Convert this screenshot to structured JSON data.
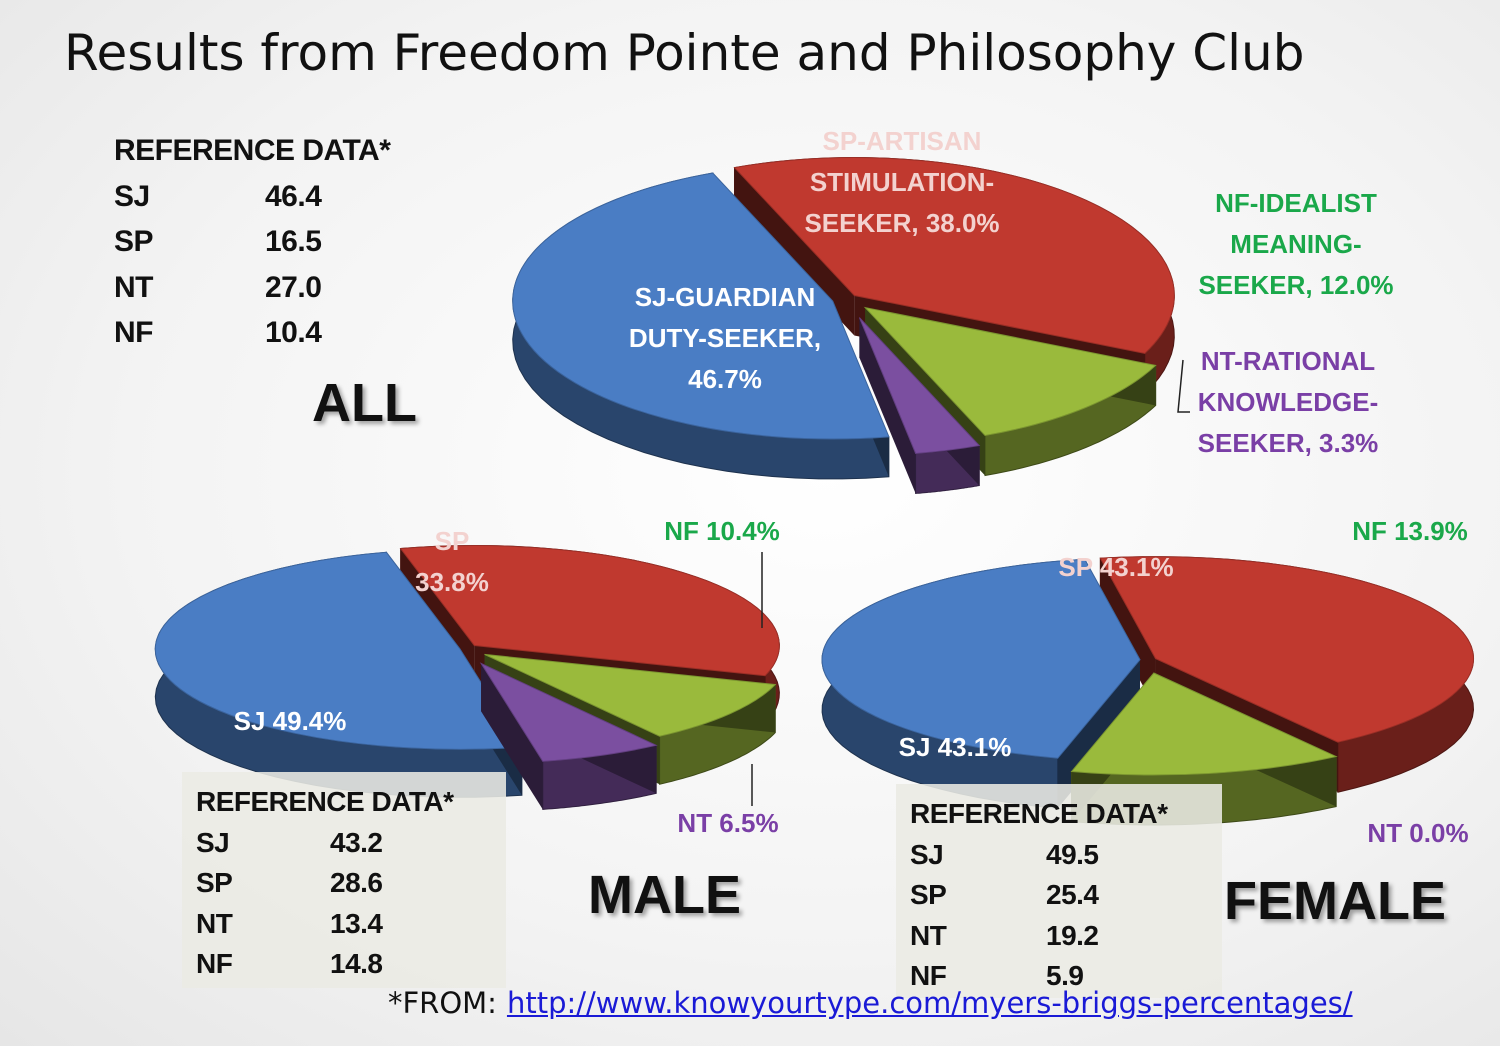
{
  "title": "Results from Freedom Pointe and Philosophy Club",
  "colors": {
    "SJ": "#4a7dc4",
    "SP": "#c0392f",
    "NF": "#9aba3c",
    "NT": "#7b4fa0",
    "NF_label": "#1aa84a",
    "NT_label": "#7a3fa6"
  },
  "reference_all": {
    "heading": "REFERENCE DATA*",
    "rows": [
      {
        "k": "SJ",
        "v": "46.4"
      },
      {
        "k": "SP",
        "v": "16.5"
      },
      {
        "k": "NT",
        "v": "27.0"
      },
      {
        "k": "NF",
        "v": "10.4"
      }
    ]
  },
  "reference_male": {
    "heading": "REFERENCE DATA*",
    "rows": [
      {
        "k": "SJ",
        "v": "43.2"
      },
      {
        "k": "SP",
        "v": "28.6"
      },
      {
        "k": "NT",
        "v": "13.4"
      },
      {
        "k": "NF",
        "v": "14.8"
      }
    ]
  },
  "reference_female": {
    "heading": "REFERENCE DATA*",
    "rows": [
      {
        "k": "SJ",
        "v": "49.5"
      },
      {
        "k": "SP",
        "v": "25.4"
      },
      {
        "k": "NT",
        "v": "19.2"
      },
      {
        "k": "NF",
        "v": "5.9"
      }
    ]
  },
  "group_labels": {
    "all": "ALL",
    "male": "MALE",
    "female": "FEMALE"
  },
  "source": {
    "prefix": "*FROM:",
    "link": "http://www.knowyourtype.com/myers-briggs-percentages/"
  },
  "chart_data": [
    {
      "type": "pie",
      "title": "ALL",
      "categories": [
        "SP",
        "NF",
        "NT",
        "SJ"
      ],
      "values": [
        38.0,
        12.0,
        3.3,
        46.7
      ],
      "labels": [
        [
          "SP-ARTISAN",
          "STIMULATION-",
          "SEEKER, 38.0%"
        ],
        [
          "NF-IDEALIST",
          "MEANING-",
          "SEEKER, 12.0%"
        ],
        [
          "NT-RATIONAL",
          "KNOWLEDGE-",
          "SEEKER, 3.3%"
        ],
        [
          "SJ-GUARDIAN",
          "DUTY-SEEKER,",
          "46.7%"
        ]
      ]
    },
    {
      "type": "pie",
      "title": "MALE",
      "categories": [
        "SP",
        "NF",
        "NT",
        "SJ"
      ],
      "values": [
        33.8,
        10.4,
        6.5,
        49.4
      ],
      "labels": [
        [
          "SP",
          "33.8%"
        ],
        [
          "NF 10.4%"
        ],
        [
          "NT  6.5%"
        ],
        [
          "SJ 49.4%"
        ]
      ]
    },
    {
      "type": "pie",
      "title": "FEMALE",
      "categories": [
        "SP",
        "NF",
        "NT",
        "SJ"
      ],
      "values": [
        43.1,
        13.9,
        0.0,
        43.1
      ],
      "labels": [
        [
          "SP 43.1%"
        ],
        [
          "NF 13.9%"
        ],
        [
          "NT  0.0%"
        ],
        [
          "SJ  43.1%"
        ]
      ]
    }
  ]
}
